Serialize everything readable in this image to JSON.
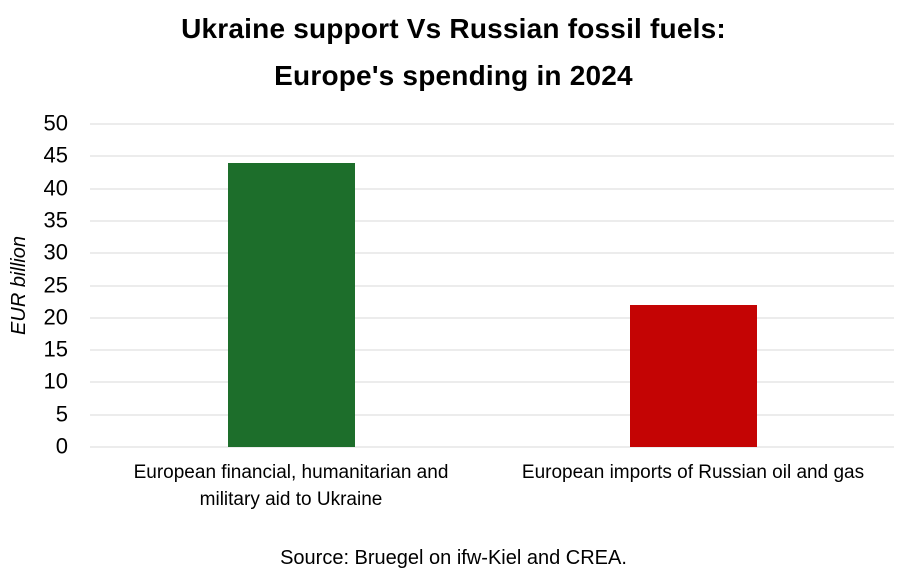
{
  "chart_data": {
    "type": "bar",
    "title": "Ukraine support Vs Russian fossil fuels: Europe's spending in 2024",
    "title_lines": [
      "Ukraine support Vs Russian fossil fuels:",
      "Europe's spending in 2024"
    ],
    "ylabel": "EUR billion",
    "xlabel": "",
    "categories": [
      "European financial, humanitarian and military aid to Ukraine",
      "European imports of Russian oil and gas"
    ],
    "values": [
      44,
      22
    ],
    "bar_colors": [
      "#1d6e2b",
      "#c40404"
    ],
    "yticks": [
      0,
      5,
      10,
      15,
      20,
      25,
      30,
      35,
      40,
      45,
      50
    ],
    "ylim": [
      0,
      50
    ],
    "grid": "horizontal",
    "gridline_color": "#d9d9d9",
    "legend": "none",
    "text_color": "#000000",
    "background_color": "#ffffff"
  },
  "source_note": "Source: Bruegel on ifw-Kiel and CREA."
}
